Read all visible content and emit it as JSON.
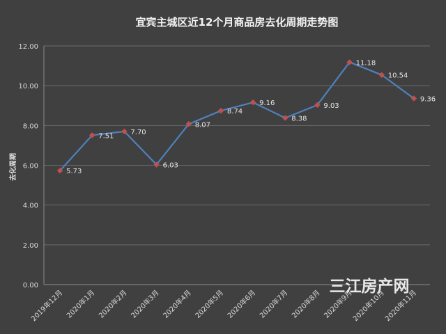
{
  "chart_data": {
    "type": "line",
    "title": "宜宾主城区近12个月商品房去化周期走势图",
    "ylabel": "去化周期",
    "xlabel": "",
    "ylim": [
      0,
      12
    ],
    "yticks": [
      "0.00",
      "2.00",
      "4.00",
      "6.00",
      "8.00",
      "10.00",
      "12.00"
    ],
    "grid": true,
    "legend": "none",
    "categories": [
      "2019年12月",
      "2020年1月",
      "2020年2月",
      "2020年3月",
      "2020年4月",
      "2020年5月",
      "2020年6月",
      "2020年7月",
      "2020年8月",
      "2020年9月",
      "2020年10月",
      "2020年11月"
    ],
    "values": [
      5.73,
      7.51,
      7.7,
      6.03,
      8.07,
      8.74,
      9.16,
      8.38,
      9.03,
      11.18,
      10.54,
      9.36
    ],
    "data_labels": [
      "5.73",
      "7.51",
      "7.70",
      "6.03",
      "8.07",
      "8.74",
      "9.16",
      "8.38",
      "9.03",
      "11.18",
      "10.54",
      "9.36"
    ],
    "line_color": "#4f81bd",
    "marker_color": "#c0504d"
  },
  "watermark": "三江房产网"
}
